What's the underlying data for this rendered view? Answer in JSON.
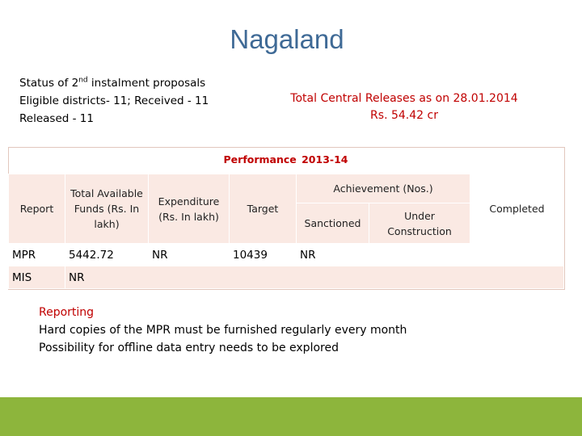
{
  "title": "Nagaland",
  "status": {
    "line1_prefix": "Status of 2",
    "line1_sup": "nd",
    "line1_suffix": " instalment proposals",
    "line2": "Eligible districts- 11; Received - 11",
    "line3": "Released - 11"
  },
  "releases": {
    "line1": "Total Central Releases as on 28.01.2014",
    "line2": "Rs. 54.42 cr"
  },
  "performance": {
    "title": "Performance  2013-14",
    "headers": {
      "report": "Report",
      "funds": "Total Available Funds (Rs. In lakh)",
      "expenditure": "Expenditure (Rs. In lakh)",
      "target": "Target",
      "achievement": "Achievement (Nos.)",
      "sanctioned": "Sanctioned",
      "under_construction": "Under Construction",
      "completed": "Completed"
    },
    "rows": [
      {
        "report": "MPR",
        "funds": "5442.72",
        "expenditure": "NR",
        "target": "10439",
        "achievement": "NR"
      },
      {
        "report": "MIS",
        "value": "NR"
      }
    ]
  },
  "reporting": {
    "heading": "Reporting",
    "line1": "Hard copies of the MPR must be furnished regularly every month",
    "line2": "Possibility for offline data entry needs to be explored"
  },
  "colors": {
    "title": "#3f6a96",
    "accent_red": "#c00000",
    "table_fill": "#fae9e3",
    "footer_green": "#8db53c"
  }
}
